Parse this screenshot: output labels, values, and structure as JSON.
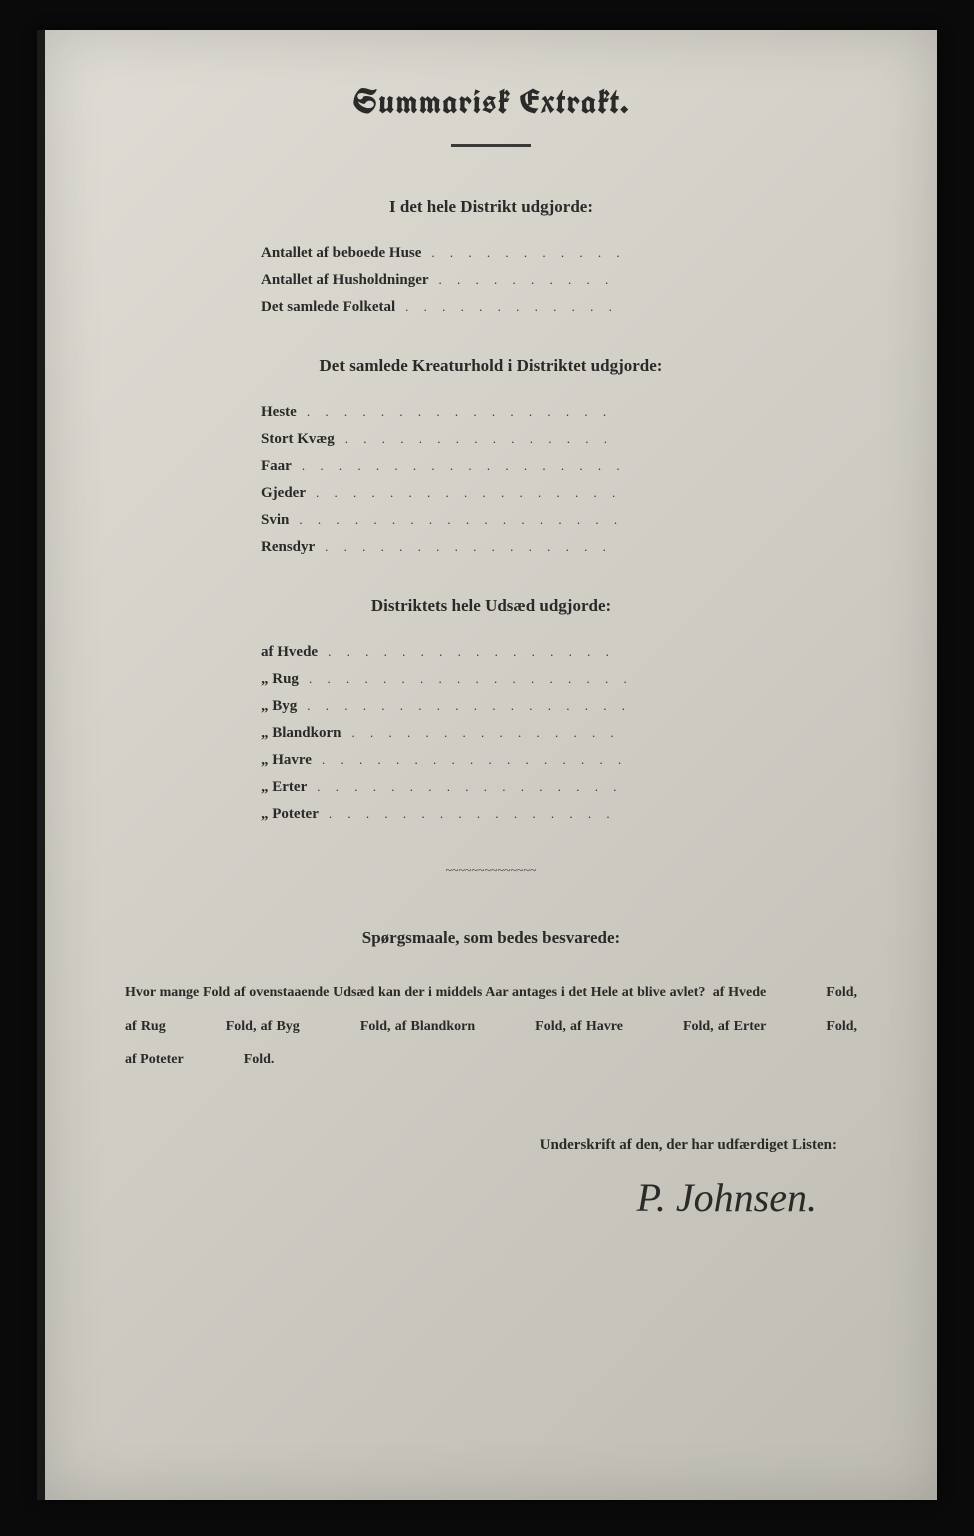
{
  "title": "Summarisk Extrakt.",
  "section1": {
    "heading": "I det hele Distrikt udgjorde:",
    "rows": [
      {
        "label": "Antallet af beboede Huse",
        "value": ""
      },
      {
        "label": "Antallet af Husholdninger",
        "value": ""
      },
      {
        "label": "Det samlede Folketal",
        "value": ""
      }
    ]
  },
  "section2": {
    "heading": "Det samlede Kreaturhold i Distriktet udgjorde:",
    "rows": [
      {
        "label": "Heste",
        "value": ""
      },
      {
        "label": "Stort Kvæg",
        "value": ""
      },
      {
        "label": "Faar",
        "value": ""
      },
      {
        "label": "Gjeder",
        "value": ""
      },
      {
        "label": "Svin",
        "value": ""
      },
      {
        "label": "Rensdyr",
        "value": ""
      }
    ]
  },
  "section3": {
    "heading": "Distriktets hele Udsæd udgjorde:",
    "rows": [
      {
        "label": "af Hvede",
        "value": ""
      },
      {
        "label": "„ Rug",
        "value": ""
      },
      {
        "label": "„ Byg",
        "value": ""
      },
      {
        "label": "„ Blandkorn",
        "value": ""
      },
      {
        "label": "„ Havre",
        "value": ""
      },
      {
        "label": "„ Erter",
        "value": ""
      },
      {
        "label": "„ Poteter",
        "value": ""
      }
    ]
  },
  "question": {
    "heading": "Spørgsmaale, som bedes besvarede:",
    "intro": "Hvor mange Fold af ovenstaaende Udsæd kan der i middels Aar antages i det Hele at blive avlet?",
    "items": [
      {
        "prefix": "af Hvede",
        "suffix": "Fold,"
      },
      {
        "prefix": "af Rug",
        "suffix": "Fold,"
      },
      {
        "prefix": "af Byg",
        "suffix": "Fold,"
      },
      {
        "prefix": "af Blandkorn",
        "suffix": "Fold,"
      },
      {
        "prefix": "af Havre",
        "suffix": "Fold,"
      },
      {
        "prefix": "af Erter",
        "suffix": "Fold,"
      },
      {
        "prefix": "af Poteter",
        "suffix": "Fold."
      }
    ]
  },
  "signature": {
    "label": "Underskrift af den, der har udfærdiget Listen:",
    "name": "P. Johnsen."
  },
  "style": {
    "page_bg": "#d5d3ca",
    "text_color": "#2a2a28",
    "title_fontsize": 34,
    "heading_fontsize": 17,
    "row_fontsize": 15,
    "question_fontsize": 14,
    "signature_fontsize": 40
  }
}
